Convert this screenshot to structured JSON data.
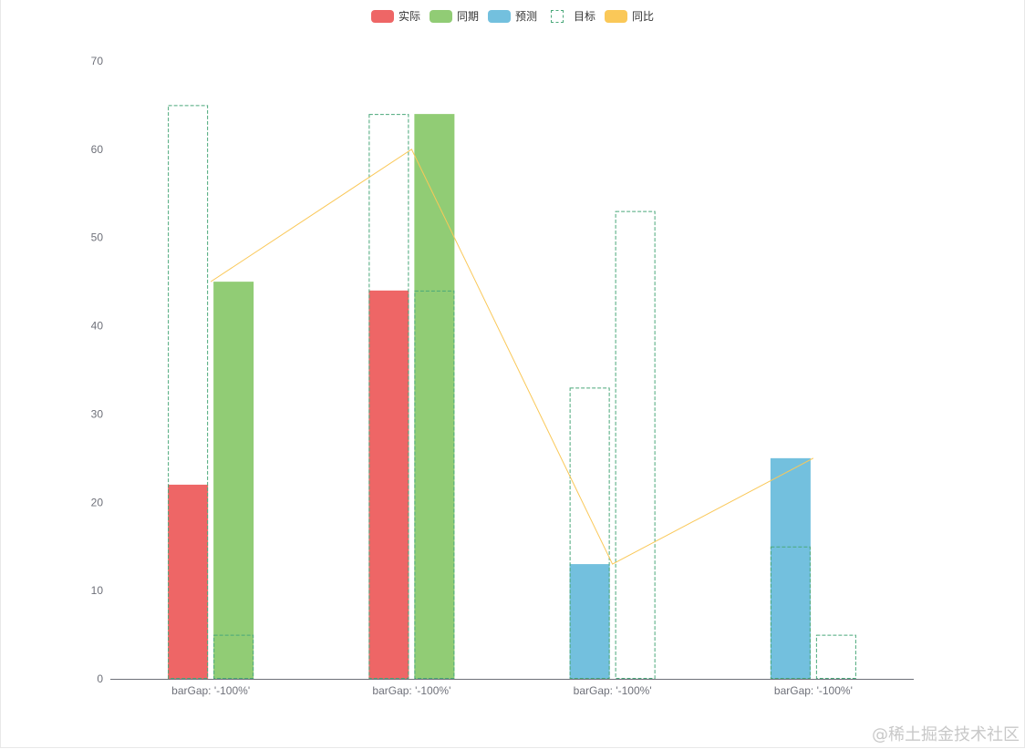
{
  "legend": [
    {
      "label": "实际",
      "color": "#ee6666",
      "style": "filled"
    },
    {
      "label": "同期",
      "color": "#91cc75",
      "style": "filled"
    },
    {
      "label": "预测",
      "color": "#73c0de",
      "style": "filled"
    },
    {
      "label": "目标",
      "color": "#4aa87a",
      "style": "dashed"
    },
    {
      "label": "同比",
      "color": "#fac858",
      "style": "filled"
    }
  ],
  "watermark": "@稀土掘金技术社区",
  "chart_data": {
    "type": "bar",
    "categories": [
      "barGap: '-100%'",
      "barGap: '-100%'",
      "barGap: '-100%'",
      "barGap: '-100%'"
    ],
    "ylim": [
      0,
      70
    ],
    "yticks": [
      0,
      10,
      20,
      30,
      40,
      50,
      60,
      70
    ],
    "grid": false,
    "legend_position": "top-center",
    "series": [
      {
        "name": "实际",
        "slot": 0,
        "style": "filled",
        "color": "#ee6666",
        "values": [
          22,
          44,
          null,
          null
        ]
      },
      {
        "name": "预测",
        "slot": 0,
        "style": "filled",
        "color": "#73c0de",
        "values": [
          null,
          null,
          13,
          25
        ]
      },
      {
        "name": "同期",
        "slot": 1,
        "style": "filled",
        "color": "#91cc75",
        "values": [
          45,
          64,
          null,
          null
        ]
      },
      {
        "name": "目标",
        "slot": 0,
        "style": "dashed",
        "color": "#4aa87a",
        "values": [
          65,
          64,
          33,
          15
        ]
      },
      {
        "name": "目标",
        "slot": 1,
        "style": "dashed",
        "color": "#4aa87a",
        "values": [
          5,
          44,
          53,
          5
        ]
      },
      {
        "name": "同比",
        "type": "line",
        "color": "#fac858",
        "values": [
          45,
          60,
          13,
          25
        ]
      }
    ]
  }
}
